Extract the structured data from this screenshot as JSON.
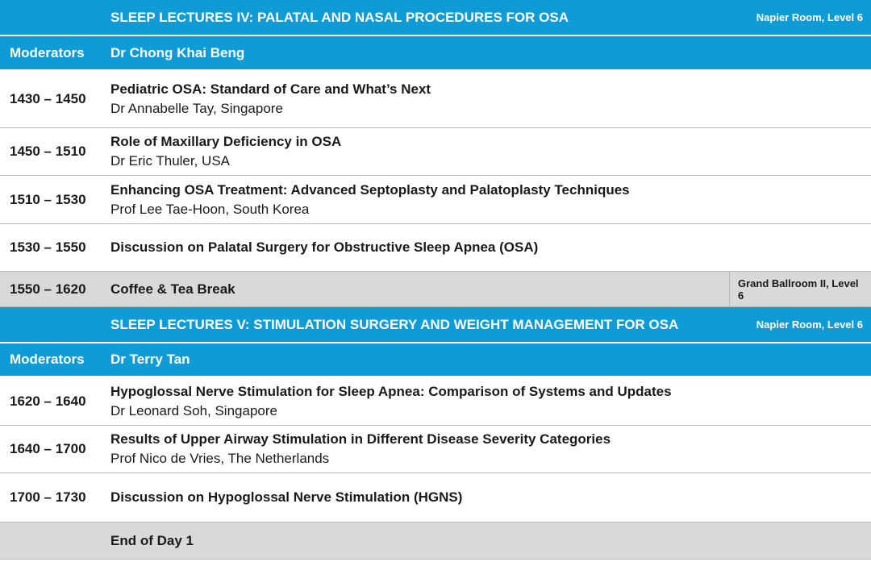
{
  "sessions": [
    {
      "title": "SLEEP LECTURES IV: PALATAL AND NASAL PROCEDURES FOR OSA",
      "venue": "Napier Room, Level 6",
      "moderators_label": "Moderators",
      "moderators": "Dr Chong Khai Beng",
      "talks": [
        {
          "time": "1430 – 1450",
          "title": "Pediatric OSA: Standard of Care and What’s Next",
          "speaker": "Dr Annabelle Tay, Singapore"
        },
        {
          "time": "1450 – 1510",
          "title": "Role of Maxillary Deficiency in OSA",
          "speaker": "Dr Eric Thuler, USA"
        },
        {
          "time": "1510 – 1530",
          "title": "Enhancing OSA Treatment: Advanced Septoplasty and Palatoplasty Techniques",
          "speaker": "Prof Lee Tae-Hoon, South Korea"
        }
      ],
      "discussion": {
        "time": "1530 – 1550",
        "title": "Discussion on Palatal Surgery for Obstructive Sleep Apnea (OSA)"
      }
    },
    {
      "title": "SLEEP LECTURES V: STIMULATION SURGERY AND WEIGHT MANAGEMENT FOR OSA",
      "venue": "Napier Room, Level 6",
      "moderators_label": "Moderators",
      "moderators": "Dr Terry Tan",
      "talks": [
        {
          "time": "1620 – 1640",
          "title": "Hypoglossal Nerve Stimulation for Sleep Apnea: Comparison of Systems and Updates",
          "speaker": "Dr Leonard Soh, Singapore"
        },
        {
          "time": "1640 – 1700",
          "title": "Results of Upper Airway Stimulation in Different Disease Severity Categories",
          "speaker": "Prof Nico de Vries, The Netherlands"
        }
      ],
      "discussion": {
        "time": "1700 – 1730",
        "title": "Discussion on Hypoglossal Nerve Stimulation (HGNS)"
      }
    }
  ],
  "break": {
    "time": "1550 – 1620",
    "title": "Coffee & Tea Break",
    "venue": "Grand Ballroom II, Level 6"
  },
  "end": {
    "title": "End of Day 1"
  },
  "colors": {
    "session_header": "#0e9bd6",
    "grey_row": "#d9d9d9",
    "divider": "#b8b8b8"
  }
}
